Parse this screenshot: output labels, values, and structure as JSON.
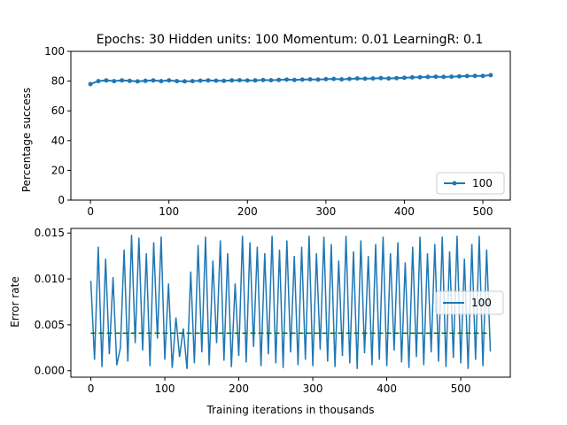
{
  "figure": {
    "title": "Epochs: 30 Hidden units: 100 Momentum: 0.01 LearningR: 0.1"
  },
  "chart_data": [
    {
      "type": "line",
      "title": "Epochs: 30 Hidden units: 100 Momentum: 0.01 LearningR: 0.1",
      "xlabel": "",
      "ylabel": "Percentage success",
      "xlim": [
        -25,
        535
      ],
      "ylim": [
        0,
        100
      ],
      "xticks": [
        0,
        100,
        200,
        300,
        400,
        500
      ],
      "yticks": [
        0,
        20,
        40,
        60,
        80,
        100
      ],
      "legend_position": "lower-right",
      "grid": false,
      "series": [
        {
          "name": "100",
          "color": "#1f77b4",
          "marker": "circle",
          "x": [
            0,
            10,
            20,
            30,
            40,
            50,
            60,
            70,
            80,
            90,
            100,
            110,
            120,
            130,
            140,
            150,
            160,
            170,
            180,
            190,
            200,
            210,
            220,
            230,
            240,
            250,
            260,
            270,
            280,
            290,
            300,
            310,
            320,
            330,
            340,
            350,
            360,
            370,
            380,
            390,
            400,
            410,
            420,
            430,
            440,
            450,
            460,
            470,
            480,
            490,
            500,
            510
          ],
          "values": [
            78,
            80,
            80.5,
            80,
            80.5,
            80.2,
            79.8,
            80.2,
            80.5,
            80,
            80.5,
            80,
            79.8,
            80,
            80.3,
            80.5,
            80.3,
            80.2,
            80.5,
            80.6,
            80.4,
            80.5,
            80.7,
            80.6,
            80.8,
            81,
            80.8,
            81,
            81.2,
            81,
            81.3,
            81.5,
            81.2,
            81.5,
            81.8,
            81.6,
            81.8,
            82,
            81.8,
            82,
            82.2,
            82.5,
            82.6,
            82.8,
            83,
            82.8,
            83,
            83.2,
            83.4,
            83.5,
            83.5,
            84
          ]
        }
      ]
    },
    {
      "type": "line",
      "title": "",
      "xlabel": "Training iterations in thousands",
      "ylabel": "Error rate",
      "xlim": [
        -27,
        567
      ],
      "ylim": [
        -0.0007,
        0.0155
      ],
      "xticks": [
        0,
        100,
        200,
        300,
        400,
        500
      ],
      "yticks": [
        0.0,
        0.005,
        0.01,
        0.015
      ],
      "ytick_labels": [
        "0.000",
        "0.005",
        "0.010",
        "0.015"
      ],
      "legend_position": "center-right",
      "grid": false,
      "series": [
        {
          "name": "100",
          "color": "#1f77b4",
          "x": [
            0,
            5,
            10,
            15,
            20,
            25,
            30,
            35,
            40,
            45,
            50,
            55,
            60,
            65,
            70,
            75,
            80,
            85,
            90,
            95,
            100,
            105,
            110,
            115,
            120,
            125,
            130,
            135,
            140,
            145,
            150,
            155,
            160,
            165,
            170,
            175,
            180,
            185,
            190,
            195,
            200,
            205,
            210,
            215,
            220,
            225,
            230,
            235,
            240,
            245,
            250,
            255,
            260,
            265,
            270,
            275,
            280,
            285,
            290,
            295,
            300,
            305,
            310,
            315,
            320,
            325,
            330,
            335,
            340,
            345,
            350,
            355,
            360,
            365,
            370,
            375,
            380,
            385,
            390,
            395,
            400,
            405,
            410,
            415,
            420,
            425,
            430,
            435,
            440,
            445,
            450,
            455,
            460,
            465,
            470,
            475,
            480,
            485,
            490,
            495,
            500,
            505,
            510,
            515,
            520,
            525,
            530,
            535,
            540
          ],
          "values": [
            0.0098,
            0.0012,
            0.0135,
            0.0004,
            0.0122,
            0.0018,
            0.0102,
            0.0006,
            0.0025,
            0.0132,
            0.001,
            0.0148,
            0.003,
            0.0145,
            0.0022,
            0.0128,
            0.0005,
            0.014,
            0.0035,
            0.0146,
            0.0012,
            0.0095,
            0.0003,
            0.0058,
            0.0015,
            0.0046,
            0.0002,
            0.0108,
            0.0008,
            0.0137,
            0.002,
            0.0146,
            0.0006,
            0.012,
            0.003,
            0.0142,
            0.0011,
            0.0128,
            0.0004,
            0.0095,
            0.0016,
            0.0147,
            0.0009,
            0.014,
            0.0026,
            0.0135,
            0.0005,
            0.0128,
            0.0018,
            0.0147,
            0.0008,
            0.0132,
            0.0003,
            0.0142,
            0.002,
            0.0125,
            0.0006,
            0.0135,
            0.0012,
            0.0147,
            0.0005,
            0.0128,
            0.0023,
            0.0146,
            0.001,
            0.0138,
            0.0004,
            0.012,
            0.0016,
            0.0147,
            0.0008,
            0.013,
            0.0002,
            0.0142,
            0.0019,
            0.0125,
            0.0006,
            0.0138,
            0.0012,
            0.0146,
            0.0005,
            0.0128,
            0.0022,
            0.014,
            0.0009,
            0.0118,
            0.0003,
            0.0135,
            0.0015,
            0.0146,
            0.0006,
            0.0128,
            0.002,
            0.0138,
            0.001,
            0.0146,
            0.0004,
            0.013,
            0.0014,
            0.0147,
            0.0008,
            0.0122,
            0.0002,
            0.0138,
            0.0012,
            0.0147,
            0.0005,
            0.0132,
            0.0021
          ]
        },
        {
          "name": "",
          "color": "#008000",
          "dashed": true,
          "x": [
            0,
            540
          ],
          "values": [
            0.0041,
            0.0041
          ]
        }
      ]
    }
  ]
}
